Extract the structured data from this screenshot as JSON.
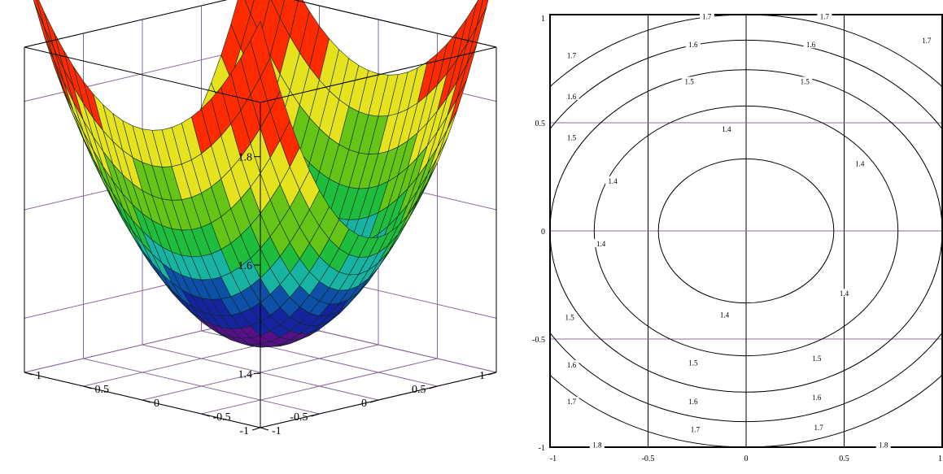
{
  "colors": {
    "background": "#ffffff",
    "grid_dark": "#000000",
    "grid_purple": "#8a6a9a",
    "surface_bands": [
      "#5a0f8a",
      "#16239e",
      "#0e4fa8",
      "#18b3a3",
      "#1fbd3d",
      "#66c417",
      "#e6e21e",
      "#ff2a00"
    ]
  },
  "chart_data": [
    {
      "type": "surface",
      "title": "",
      "xlabel": "",
      "ylabel": "",
      "zlabel": "",
      "x_range": [
        -1,
        1
      ],
      "y_range": [
        -1,
        1
      ],
      "z_range": [
        1.3,
        1.9
      ],
      "x_ticks": [
        "-1",
        "-0.5",
        "0",
        "0.5",
        "1"
      ],
      "y_ticks": [
        "-1",
        "-0.5",
        "0",
        "0.5",
        "1"
      ],
      "z_ticks": [
        "1.4",
        "1.6",
        "1.8"
      ],
      "surface": {
        "z_min": 1.35,
        "coef_x": 0.25,
        "coef_y": 0.45
      },
      "color_bands": [
        1.35,
        1.4,
        1.45,
        1.5,
        1.55,
        1.6,
        1.7,
        1.8,
        1.9
      ],
      "grid": true
    },
    {
      "type": "contour",
      "title": "",
      "xlabel": "",
      "ylabel": "",
      "x_range": [
        -1,
        1
      ],
      "y_range": [
        -1,
        1
      ],
      "x_ticks": [
        "-1",
        "-0.5",
        "0",
        "0.5",
        "1"
      ],
      "y_ticks": [
        "-1",
        "-0.5",
        "0",
        "0.5",
        "1"
      ],
      "levels": [
        1.4,
        1.5,
        1.6,
        1.7,
        1.8
      ],
      "contour_labels": [
        {
          "text": "1.4",
          "x": -0.1,
          "y": 0.47
        },
        {
          "text": "1.4",
          "x": 0.58,
          "y": 0.31
        },
        {
          "text": "1.4",
          "x": -0.68,
          "y": 0.23
        },
        {
          "text": "1.4",
          "x": -0.74,
          "y": -0.06
        },
        {
          "text": "1.4",
          "x": 0.5,
          "y": -0.29
        },
        {
          "text": "1.4",
          "x": -0.11,
          "y": -0.39
        },
        {
          "text": "1.5",
          "x": -0.29,
          "y": 0.69
        },
        {
          "text": "1.5",
          "x": 0.3,
          "y": 0.69
        },
        {
          "text": "1.5",
          "x": -0.27,
          "y": -0.61
        },
        {
          "text": "1.5",
          "x": 0.36,
          "y": -0.59
        },
        {
          "text": "1.5",
          "x": -0.89,
          "y": 0.43
        },
        {
          "text": "1.5",
          "x": -0.9,
          "y": -0.4
        },
        {
          "text": "1.6",
          "x": -0.27,
          "y": 0.86
        },
        {
          "text": "1.6",
          "x": 0.33,
          "y": 0.86
        },
        {
          "text": "1.6",
          "x": -0.27,
          "y": -0.79
        },
        {
          "text": "1.6",
          "x": 0.36,
          "y": -0.77
        },
        {
          "text": "1.6",
          "x": -0.89,
          "y": 0.62
        },
        {
          "text": "1.6",
          "x": -0.89,
          "y": -0.62
        },
        {
          "text": "1.7",
          "x": -0.26,
          "y": -0.92
        },
        {
          "text": "1.7",
          "x": 0.37,
          "y": -0.91
        },
        {
          "text": "1.7",
          "x": -0.89,
          "y": 0.81
        },
        {
          "text": "1.7",
          "x": -0.89,
          "y": -0.79
        },
        {
          "text": "1.7",
          "x": 0.92,
          "y": 0.88
        },
        {
          "text": "1.7",
          "x": -0.2,
          "y": 0.99
        },
        {
          "text": "1.7",
          "x": 0.4,
          "y": 0.99
        },
        {
          "text": "1.8",
          "x": -0.76,
          "y": -0.99
        },
        {
          "text": "1.8",
          "x": 0.7,
          "y": -0.99
        }
      ],
      "grid": true
    }
  ]
}
